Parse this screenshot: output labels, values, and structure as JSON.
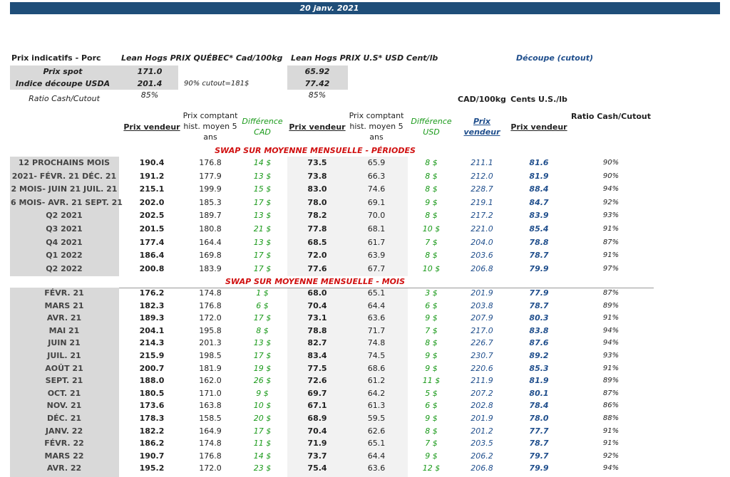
{
  "header": {
    "date": "20 janv. 2021"
  },
  "indicative": {
    "label": "Prix indicatifs - Porc",
    "qc_title": "Lean Hogs PRIX QUÉBEC* Cad/100kg",
    "us_title": "Lean Hogs PRIX U.S* USD Cent/lb",
    "cutout_title": "Découpe (cutout)",
    "spot_label": "Prix spot",
    "spot_qc": "171.0",
    "spot_us": "65.92",
    "usda_label": "Indice découpe USDA",
    "usda_qc": "201.4",
    "usda_note": "90% cutout=181$",
    "usda_us": "77.42",
    "ratio_label": "Ratio Cash/Cutout",
    "ratio_qc": "85%",
    "ratio_us": "85%"
  },
  "columns": {
    "cad_unit": "CAD/100kg",
    "cents_unit": "Cents U.S./lb",
    "headers": [
      "Prix vendeur",
      "Prix comptant hist. moyen 5 ans",
      "Différence CAD",
      "Prix vendeur",
      "Prix comptant hist. moyen 5 ans",
      "Différence USD",
      "Prix vendeur",
      "Prix vendeur",
      "Ratio Cash/Cutout"
    ]
  },
  "periods": {
    "title": "SWAP SUR MOYENNE MENSUELLE - PÉRIODES",
    "rows": [
      [
        "12 PROCHAINS MOIS",
        "190.4",
        "176.8",
        "14 $",
        "73.5",
        "65.9",
        "8 $",
        "211.1",
        "81.6",
        "90%"
      ],
      [
        "2021- FÉVR. 21 DÉC. 21",
        "191.2",
        "177.9",
        "13 $",
        "73.8",
        "66.3",
        "8 $",
        "212.0",
        "81.9",
        "90%"
      ],
      [
        "2 MOIS- JUIN 21 JUIL. 21",
        "215.1",
        "199.9",
        "15 $",
        "83.0",
        "74.6",
        "8 $",
        "228.7",
        "88.4",
        "94%"
      ],
      [
        "6 MOIS- AVR. 21 SEPT. 21",
        "202.0",
        "185.3",
        "17 $",
        "78.0",
        "69.1",
        "9 $",
        "219.1",
        "84.7",
        "92%"
      ],
      [
        "Q2 2021",
        "202.5",
        "189.7",
        "13 $",
        "78.2",
        "70.0",
        "8 $",
        "217.2",
        "83.9",
        "93%"
      ],
      [
        "Q3 2021",
        "201.5",
        "180.8",
        "21 $",
        "77.8",
        "68.1",
        "10 $",
        "221.0",
        "85.4",
        "91%"
      ],
      [
        "Q4 2021",
        "177.4",
        "164.4",
        "13 $",
        "68.5",
        "61.7",
        "7 $",
        "204.0",
        "78.8",
        "87%"
      ],
      [
        "Q1 2022",
        "186.4",
        "169.8",
        "17 $",
        "72.0",
        "63.9",
        "8 $",
        "203.6",
        "78.7",
        "91%"
      ],
      [
        "Q2 2022",
        "200.8",
        "183.9",
        "17 $",
        "77.6",
        "67.7",
        "10 $",
        "206.8",
        "79.9",
        "97%"
      ]
    ]
  },
  "months": {
    "title": "SWAP SUR MOYENNE MENSUELLE - MOIS",
    "rows": [
      [
        "FÉVR. 21",
        "176.2",
        "174.8",
        "1 $",
        "68.0",
        "65.1",
        "3 $",
        "201.9",
        "77.9",
        "87%"
      ],
      [
        "MARS 21",
        "182.3",
        "176.8",
        "6 $",
        "70.4",
        "64.4",
        "6 $",
        "203.8",
        "78.7",
        "89%"
      ],
      [
        "AVR. 21",
        "189.3",
        "172.0",
        "17 $",
        "73.1",
        "63.6",
        "9 $",
        "207.9",
        "80.3",
        "91%"
      ],
      [
        "MAI 21",
        "204.1",
        "195.8",
        "8 $",
        "78.8",
        "71.7",
        "7 $",
        "217.0",
        "83.8",
        "94%"
      ],
      [
        "JUIN 21",
        "214.3",
        "201.3",
        "13 $",
        "82.7",
        "74.8",
        "8 $",
        "226.7",
        "87.6",
        "94%"
      ],
      [
        "JUIL. 21",
        "215.9",
        "198.5",
        "17 $",
        "83.4",
        "74.5",
        "9 $",
        "230.7",
        "89.2",
        "93%"
      ],
      [
        "AOÛT 21",
        "200.7",
        "181.9",
        "19 $",
        "77.5",
        "68.6",
        "9 $",
        "220.6",
        "85.3",
        "91%"
      ],
      [
        "SEPT. 21",
        "188.0",
        "162.0",
        "26 $",
        "72.6",
        "61.2",
        "11 $",
        "211.9",
        "81.9",
        "89%"
      ],
      [
        "OCT. 21",
        "180.5",
        "171.0",
        "9 $",
        "69.7",
        "64.2",
        "5 $",
        "207.2",
        "80.1",
        "87%"
      ],
      [
        "NOV. 21",
        "173.6",
        "163.8",
        "10 $",
        "67.1",
        "61.3",
        "6 $",
        "202.8",
        "78.4",
        "86%"
      ],
      [
        "DÉC. 21",
        "178.3",
        "158.5",
        "20 $",
        "68.9",
        "59.5",
        "9 $",
        "201.9",
        "78.0",
        "88%"
      ],
      [
        "JANV. 22",
        "182.2",
        "164.9",
        "17 $",
        "70.4",
        "62.6",
        "8 $",
        "201.2",
        "77.7",
        "91%"
      ],
      [
        "FÉVR. 22",
        "186.2",
        "174.8",
        "11 $",
        "71.9",
        "65.1",
        "7 $",
        "203.5",
        "78.7",
        "91%"
      ],
      [
        "MARS 22",
        "190.7",
        "176.8",
        "14 $",
        "73.7",
        "64.4",
        "9 $",
        "206.2",
        "79.7",
        "92%"
      ],
      [
        "AVR. 22",
        "195.2",
        "172.0",
        "23 $",
        "75.4",
        "63.6",
        "12 $",
        "206.8",
        "79.9",
        "94%"
      ]
    ]
  }
}
